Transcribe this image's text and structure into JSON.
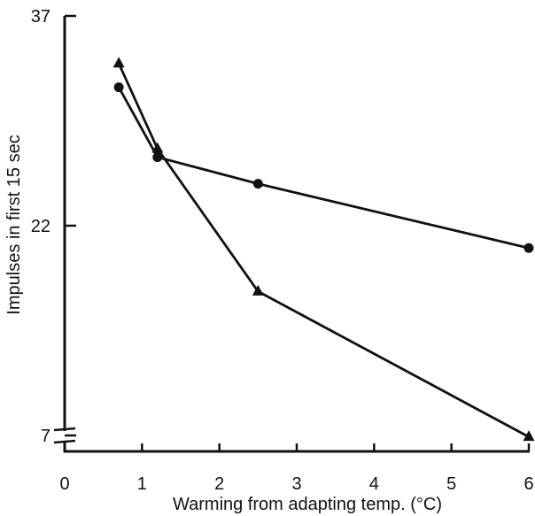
{
  "chart_data": {
    "type": "line",
    "title": "",
    "xlabel": "Warming from adapting temp. (°C)",
    "ylabel": "Impulses in first 15 sec",
    "xlim": [
      0,
      6
    ],
    "ylim": [
      7,
      37
    ],
    "x_ticks": [
      "0",
      "1",
      "2",
      "3",
      "4",
      "5",
      "6"
    ],
    "y_ticks": [
      "37",
      "22",
      "7"
    ],
    "y_axis_break": true,
    "grid": false,
    "legend": "none",
    "series": [
      {
        "marker": "circle",
        "color": "#111111",
        "x": [
          0.7,
          1.2,
          2.5,
          6.0
        ],
        "y": [
          31.9,
          26.9,
          25.0,
          20.4
        ]
      },
      {
        "marker": "triangle",
        "color": "#111111",
        "x": [
          0.7,
          1.2,
          2.5,
          6.0
        ],
        "y": [
          33.6,
          27.5,
          17.3,
          6.9
        ]
      }
    ]
  }
}
